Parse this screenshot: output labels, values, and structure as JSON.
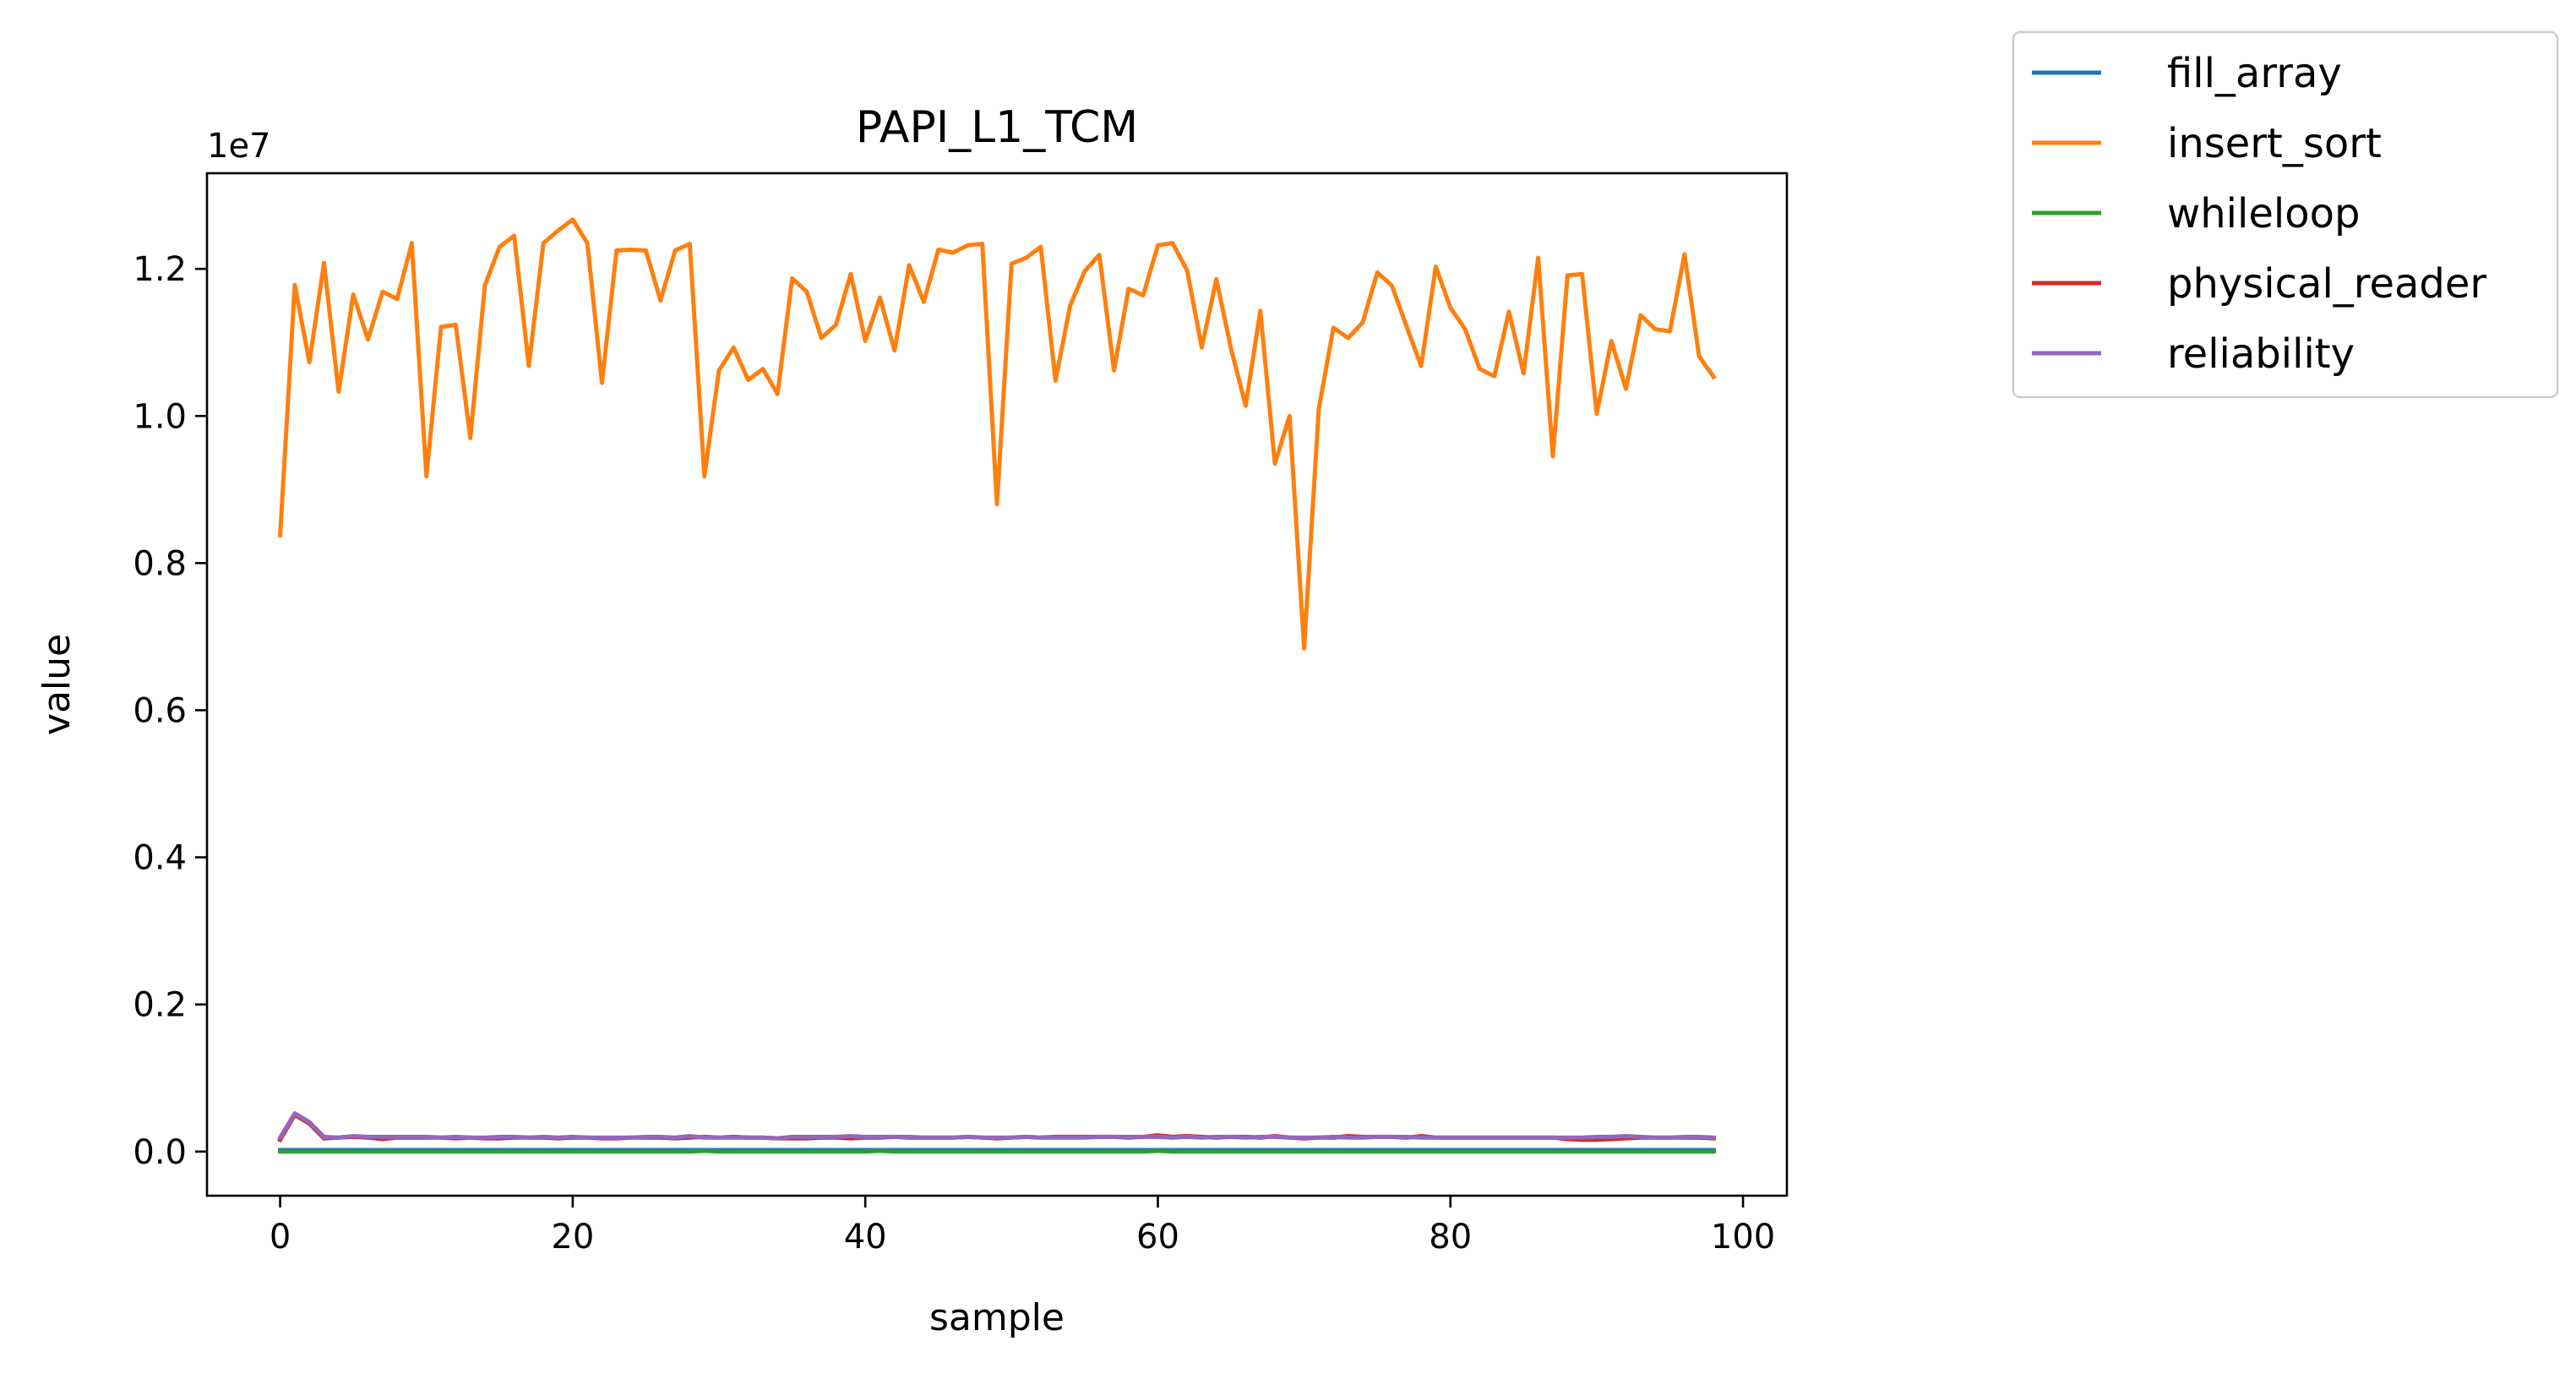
{
  "chart_data": {
    "type": "line",
    "title": "PAPI_L1_TCM",
    "xlabel": "sample",
    "ylabel": "value",
    "offset_label": "1e7",
    "xlim": [
      -5,
      103
    ],
    "ylim": [
      -0.06,
      1.33
    ],
    "xticks": [
      0,
      20,
      40,
      60,
      80,
      100
    ],
    "xtick_labels": [
      "0",
      "20",
      "40",
      "60",
      "80",
      "100"
    ],
    "yticks": [
      0.0,
      0.2,
      0.4,
      0.6,
      0.8,
      1.0,
      1.2
    ],
    "ytick_labels": [
      "0.0",
      "0.2",
      "0.4",
      "0.6",
      "0.8",
      "1.0",
      "1.2"
    ],
    "grid": false,
    "legend_position": "outside-top-right",
    "series": [
      {
        "name": "fill_array",
        "color": "#1f77b4",
        "values": [
          0.002,
          0.002,
          0.002,
          0.002,
          0.002,
          0.002,
          0.002,
          0.002,
          0.002,
          0.002,
          0.002,
          0.002,
          0.002,
          0.002,
          0.002,
          0.002,
          0.002,
          0.002,
          0.002,
          0.002,
          0.002,
          0.002,
          0.002,
          0.002,
          0.002,
          0.002,
          0.002,
          0.002,
          0.002,
          0.002,
          0.002,
          0.002,
          0.002,
          0.002,
          0.002,
          0.002,
          0.002,
          0.002,
          0.002,
          0.002,
          0.002,
          0.002,
          0.002,
          0.002,
          0.002,
          0.002,
          0.002,
          0.002,
          0.002,
          0.002,
          0.002,
          0.002,
          0.002,
          0.002,
          0.002,
          0.002,
          0.002,
          0.002,
          0.002,
          0.002,
          0.002,
          0.002,
          0.002,
          0.002,
          0.002,
          0.002,
          0.002,
          0.002,
          0.002,
          0.002,
          0.002,
          0.002,
          0.002,
          0.002,
          0.002,
          0.002,
          0.002,
          0.002,
          0.002,
          0.002,
          0.002,
          0.002,
          0.002,
          0.002,
          0.002,
          0.002,
          0.002,
          0.002,
          0.002,
          0.002,
          0.002,
          0.002,
          0.002,
          0.002,
          0.002,
          0.002,
          0.002,
          0.002,
          0.002
        ]
      },
      {
        "name": "insert_sort",
        "color": "#ff7f0e",
        "values": [
          0.838,
          1.178,
          1.073,
          1.208,
          1.033,
          1.165,
          1.104,
          1.169,
          1.159,
          1.235,
          0.918,
          1.121,
          1.124,
          0.97,
          1.178,
          1.23,
          1.245,
          1.068,
          1.235,
          1.252,
          1.267,
          1.235,
          1.045,
          1.225,
          1.226,
          1.225,
          1.157,
          1.225,
          1.234,
          0.918,
          1.062,
          1.093,
          1.049,
          1.064,
          1.03,
          1.187,
          1.169,
          1.106,
          1.124,
          1.193,
          1.102,
          1.161,
          1.089,
          1.205,
          1.155,
          1.226,
          1.222,
          1.232,
          1.234,
          0.88,
          1.207,
          1.215,
          1.23,
          1.048,
          1.15,
          1.197,
          1.219,
          1.062,
          1.173,
          1.164,
          1.232,
          1.235,
          1.198,
          1.093,
          1.186,
          1.092,
          1.014,
          1.143,
          0.935,
          1.0,
          0.684,
          1.009,
          1.12,
          1.106,
          1.127,
          1.195,
          1.177,
          1.122,
          1.068,
          1.203,
          1.147,
          1.118,
          1.064,
          1.054,
          1.142,
          1.058,
          1.215,
          0.945,
          1.191,
          1.193,
          1.003,
          1.102,
          1.037,
          1.137,
          1.118,
          1.115,
          1.22,
          1.081,
          1.053
        ]
      },
      {
        "name": "whileloop",
        "color": "#2ca02c",
        "values": [
          0.0,
          0.0,
          0.0,
          0.0,
          0.0,
          0.0,
          0.0,
          0.0,
          0.0,
          0.0,
          0.0,
          0.0,
          0.0,
          0.0,
          0.0,
          0.0,
          0.0,
          0.0,
          0.0,
          0.0,
          0.0,
          0.0,
          0.0,
          0.0,
          0.0,
          0.0,
          0.0,
          0.0,
          0.0,
          0.001,
          0.0,
          0.0,
          0.0,
          0.0,
          0.0,
          0.0,
          0.0,
          0.0,
          0.0,
          0.0,
          0.0,
          0.001,
          0.0,
          0.0,
          0.0,
          0.0,
          0.0,
          0.0,
          0.0,
          0.0,
          0.0,
          0.0,
          0.0,
          0.0,
          0.0,
          0.0,
          0.0,
          0.0,
          0.0,
          0.0,
          0.001,
          0.0,
          0.0,
          0.0,
          0.0,
          0.0,
          0.0,
          0.0,
          0.0,
          0.0,
          0.0,
          0.0,
          0.0,
          0.0,
          0.0,
          0.0,
          0.0,
          0.0,
          0.0,
          0.0,
          0.0,
          0.0,
          0.0,
          0.0,
          0.0,
          0.0,
          0.0,
          0.0,
          0.0,
          0.0,
          0.0,
          0.0,
          0.0,
          0.0,
          0.0,
          0.0,
          0.0,
          0.0,
          0.0
        ]
      },
      {
        "name": "physical_reader",
        "color": "#d62728",
        "values": [
          0.016,
          0.05,
          0.038,
          0.018,
          0.019,
          0.02,
          0.019,
          0.017,
          0.019,
          0.019,
          0.019,
          0.019,
          0.018,
          0.019,
          0.018,
          0.018,
          0.019,
          0.019,
          0.019,
          0.018,
          0.019,
          0.019,
          0.018,
          0.018,
          0.019,
          0.019,
          0.019,
          0.018,
          0.019,
          0.02,
          0.019,
          0.02,
          0.019,
          0.019,
          0.018,
          0.018,
          0.018,
          0.019,
          0.019,
          0.018,
          0.019,
          0.019,
          0.02,
          0.019,
          0.019,
          0.019,
          0.019,
          0.02,
          0.019,
          0.018,
          0.019,
          0.02,
          0.019,
          0.02,
          0.02,
          0.02,
          0.02,
          0.02,
          0.019,
          0.02,
          0.022,
          0.02,
          0.021,
          0.02,
          0.019,
          0.02,
          0.02,
          0.019,
          0.021,
          0.019,
          0.018,
          0.019,
          0.019,
          0.021,
          0.02,
          0.02,
          0.02,
          0.019,
          0.021,
          0.019,
          0.019,
          0.019,
          0.019,
          0.019,
          0.019,
          0.019,
          0.019,
          0.019,
          0.017,
          0.016,
          0.016,
          0.017,
          0.018,
          0.019,
          0.019,
          0.019,
          0.019,
          0.019,
          0.018
        ]
      },
      {
        "name": "reliability",
        "color": "#9467bd",
        "values": [
          0.019,
          0.052,
          0.04,
          0.02,
          0.019,
          0.021,
          0.02,
          0.02,
          0.02,
          0.02,
          0.02,
          0.019,
          0.02,
          0.019,
          0.019,
          0.02,
          0.02,
          0.019,
          0.02,
          0.019,
          0.02,
          0.019,
          0.019,
          0.019,
          0.019,
          0.02,
          0.02,
          0.019,
          0.021,
          0.019,
          0.019,
          0.019,
          0.019,
          0.019,
          0.018,
          0.02,
          0.02,
          0.02,
          0.02,
          0.021,
          0.02,
          0.02,
          0.02,
          0.02,
          0.019,
          0.019,
          0.019,
          0.02,
          0.019,
          0.019,
          0.019,
          0.02,
          0.019,
          0.019,
          0.019,
          0.019,
          0.02,
          0.02,
          0.02,
          0.02,
          0.02,
          0.019,
          0.02,
          0.019,
          0.02,
          0.02,
          0.019,
          0.02,
          0.02,
          0.019,
          0.019,
          0.019,
          0.02,
          0.019,
          0.019,
          0.02,
          0.02,
          0.02,
          0.019,
          0.019,
          0.019,
          0.019,
          0.019,
          0.019,
          0.019,
          0.019,
          0.019,
          0.019,
          0.019,
          0.019,
          0.02,
          0.02,
          0.021,
          0.02,
          0.019,
          0.019,
          0.02,
          0.02,
          0.019
        ]
      }
    ]
  }
}
